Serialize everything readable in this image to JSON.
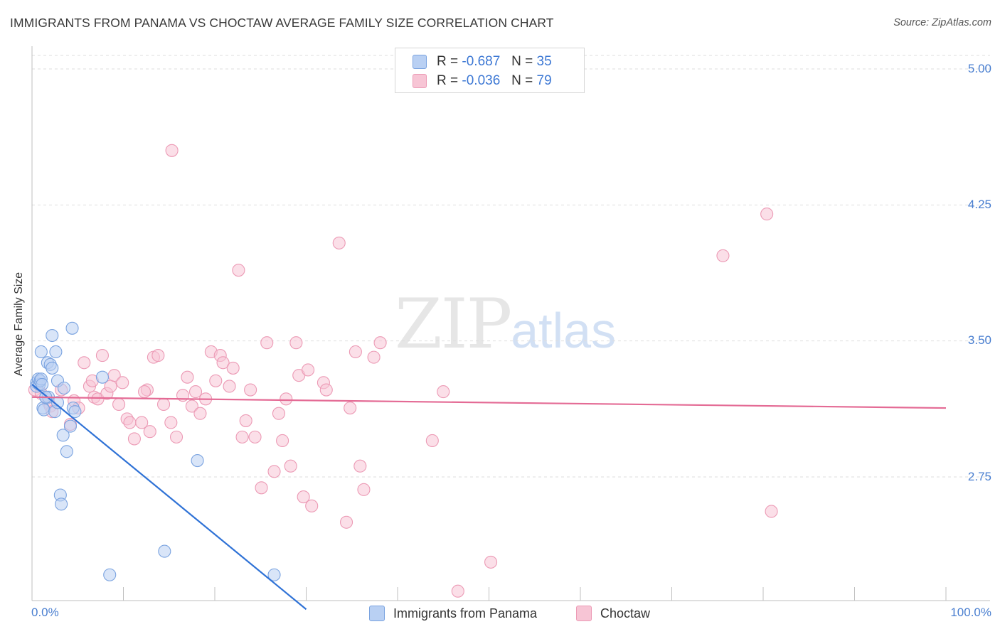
{
  "header": {
    "title": "IMMIGRANTS FROM PANAMA VS CHOCTAW AVERAGE FAMILY SIZE CORRELATION CHART",
    "source": "Source: ZipAtlas.com"
  },
  "watermark": {
    "zip": "ZIP",
    "atlas": "atlas"
  },
  "legend": {
    "rows": [
      {
        "r_label": "R =",
        "r_value": "-0.687",
        "n_label": "N =",
        "n_value": "35"
      },
      {
        "r_label": "R =",
        "r_value": "-0.036",
        "n_label": "N =",
        "n_value": "79"
      }
    ]
  },
  "colors": {
    "panama_fill": "#b9d0f3",
    "panama_stroke": "#7aa3e0",
    "panama_line": "#2f72d6",
    "choctaw_fill": "#f7c5d5",
    "choctaw_stroke": "#ec9ab5",
    "choctaw_line": "#e46b95",
    "grid": "#dedede",
    "tick_text": "#4a7fd0"
  },
  "chart_data": {
    "type": "scatter",
    "title": "IMMIGRANTS FROM PANAMA VS CHOCTAW AVERAGE FAMILY SIZE CORRELATION CHART",
    "xlabel": "",
    "ylabel": "Average Family Size",
    "x_tick_labels": [
      "0.0%",
      "100.0%"
    ],
    "y_ticks": [
      2.75,
      3.5,
      4.25,
      5.0
    ],
    "y_tick_labels": [
      "2.75",
      "3.50",
      "4.25",
      "5.00"
    ],
    "xlim": [
      0,
      100
    ],
    "ylim": [
      2.0,
      5.1
    ],
    "grid": true,
    "legend_position": "top-center",
    "series": [
      {
        "name": "Immigrants from Panama",
        "color": "#7aa3e0",
        "r": -0.687,
        "n": 35,
        "trend": {
          "x": [
            0.0,
            30.0
          ],
          "y": [
            3.26,
            2.02
          ]
        },
        "points": [
          [
            0.5,
            3.27
          ],
          [
            0.5,
            3.25
          ],
          [
            0.7,
            3.29
          ],
          [
            0.8,
            3.26
          ],
          [
            0.9,
            3.28
          ],
          [
            1.0,
            3.44
          ],
          [
            1.0,
            3.29
          ],
          [
            1.1,
            3.26
          ],
          [
            1.2,
            3.13
          ],
          [
            1.3,
            3.12
          ],
          [
            1.5,
            3.19
          ],
          [
            1.7,
            3.38
          ],
          [
            1.8,
            3.19
          ],
          [
            2.0,
            3.37
          ],
          [
            2.2,
            3.35
          ],
          [
            2.2,
            3.53
          ],
          [
            2.5,
            3.11
          ],
          [
            2.6,
            3.44
          ],
          [
            2.8,
            3.16
          ],
          [
            2.8,
            3.28
          ],
          [
            3.1,
            2.65
          ],
          [
            3.2,
            2.6
          ],
          [
            3.4,
            2.98
          ],
          [
            3.5,
            3.24
          ],
          [
            3.8,
            2.89
          ],
          [
            4.2,
            3.03
          ],
          [
            4.4,
            3.57
          ],
          [
            4.5,
            3.13
          ],
          [
            4.7,
            3.11
          ],
          [
            7.7,
            3.3
          ],
          [
            8.5,
            2.21
          ],
          [
            14.5,
            2.34
          ],
          [
            18.1,
            2.84
          ],
          [
            26.5,
            2.21
          ],
          [
            1.5,
            3.19
          ]
        ]
      },
      {
        "name": "Choctaw",
        "color": "#ec9ab5",
        "r": -0.036,
        "n": 79,
        "trend": {
          "x": [
            0.0,
            100.0
          ],
          "y": [
            3.19,
            3.13
          ]
        },
        "points": [
          [
            0.3,
            3.23
          ],
          [
            1.0,
            3.21
          ],
          [
            1.8,
            3.16
          ],
          [
            2.0,
            3.14
          ],
          [
            2.2,
            3.11
          ],
          [
            3.2,
            3.23
          ],
          [
            4.2,
            3.04
          ],
          [
            4.6,
            3.17
          ],
          [
            5.1,
            3.13
          ],
          [
            5.7,
            3.38
          ],
          [
            6.3,
            3.25
          ],
          [
            6.6,
            3.28
          ],
          [
            6.8,
            3.19
          ],
          [
            7.2,
            3.18
          ],
          [
            7.7,
            3.42
          ],
          [
            8.2,
            3.21
          ],
          [
            8.6,
            3.25
          ],
          [
            9.0,
            3.31
          ],
          [
            9.5,
            3.15
          ],
          [
            9.9,
            3.27
          ],
          [
            10.4,
            3.07
          ],
          [
            10.7,
            3.05
          ],
          [
            11.2,
            2.96
          ],
          [
            12.0,
            3.05
          ],
          [
            12.6,
            3.23
          ],
          [
            12.9,
            3.0
          ],
          [
            13.3,
            3.41
          ],
          [
            13.8,
            3.42
          ],
          [
            14.4,
            3.15
          ],
          [
            15.2,
            3.05
          ],
          [
            15.8,
            2.97
          ],
          [
            16.5,
            3.2
          ],
          [
            17.0,
            3.3
          ],
          [
            17.5,
            3.14
          ],
          [
            17.9,
            3.22
          ],
          [
            18.4,
            3.1
          ],
          [
            19.0,
            3.18
          ],
          [
            19.6,
            3.44
          ],
          [
            20.1,
            3.28
          ],
          [
            20.6,
            3.42
          ],
          [
            20.9,
            3.38
          ],
          [
            21.6,
            3.25
          ],
          [
            22.0,
            3.35
          ],
          [
            22.6,
            3.89
          ],
          [
            23.0,
            2.97
          ],
          [
            23.4,
            3.06
          ],
          [
            23.9,
            3.23
          ],
          [
            24.4,
            2.97
          ],
          [
            25.1,
            2.69
          ],
          [
            25.7,
            3.49
          ],
          [
            26.5,
            2.78
          ],
          [
            27.0,
            3.1
          ],
          [
            27.4,
            2.95
          ],
          [
            27.8,
            3.18
          ],
          [
            28.3,
            2.81
          ],
          [
            28.9,
            3.49
          ],
          [
            29.2,
            3.31
          ],
          [
            29.7,
            2.64
          ],
          [
            30.2,
            3.34
          ],
          [
            30.6,
            2.59
          ],
          [
            31.9,
            3.27
          ],
          [
            32.2,
            3.23
          ],
          [
            33.6,
            4.04
          ],
          [
            34.4,
            2.5
          ],
          [
            34.8,
            3.13
          ],
          [
            35.4,
            3.44
          ],
          [
            35.9,
            2.81
          ],
          [
            36.3,
            2.68
          ],
          [
            37.4,
            3.41
          ],
          [
            38.1,
            3.49
          ],
          [
            43.8,
            2.95
          ],
          [
            45.0,
            3.22
          ],
          [
            46.6,
            2.12
          ],
          [
            50.2,
            2.28
          ],
          [
            75.6,
            3.97
          ],
          [
            80.4,
            4.2
          ],
          [
            80.9,
            2.56
          ],
          [
            15.3,
            4.55
          ],
          [
            12.3,
            3.22
          ]
        ]
      }
    ]
  },
  "bottom_legend": {
    "items": [
      {
        "label": "Immigrants from Panama"
      },
      {
        "label": "Choctaw"
      }
    ]
  }
}
